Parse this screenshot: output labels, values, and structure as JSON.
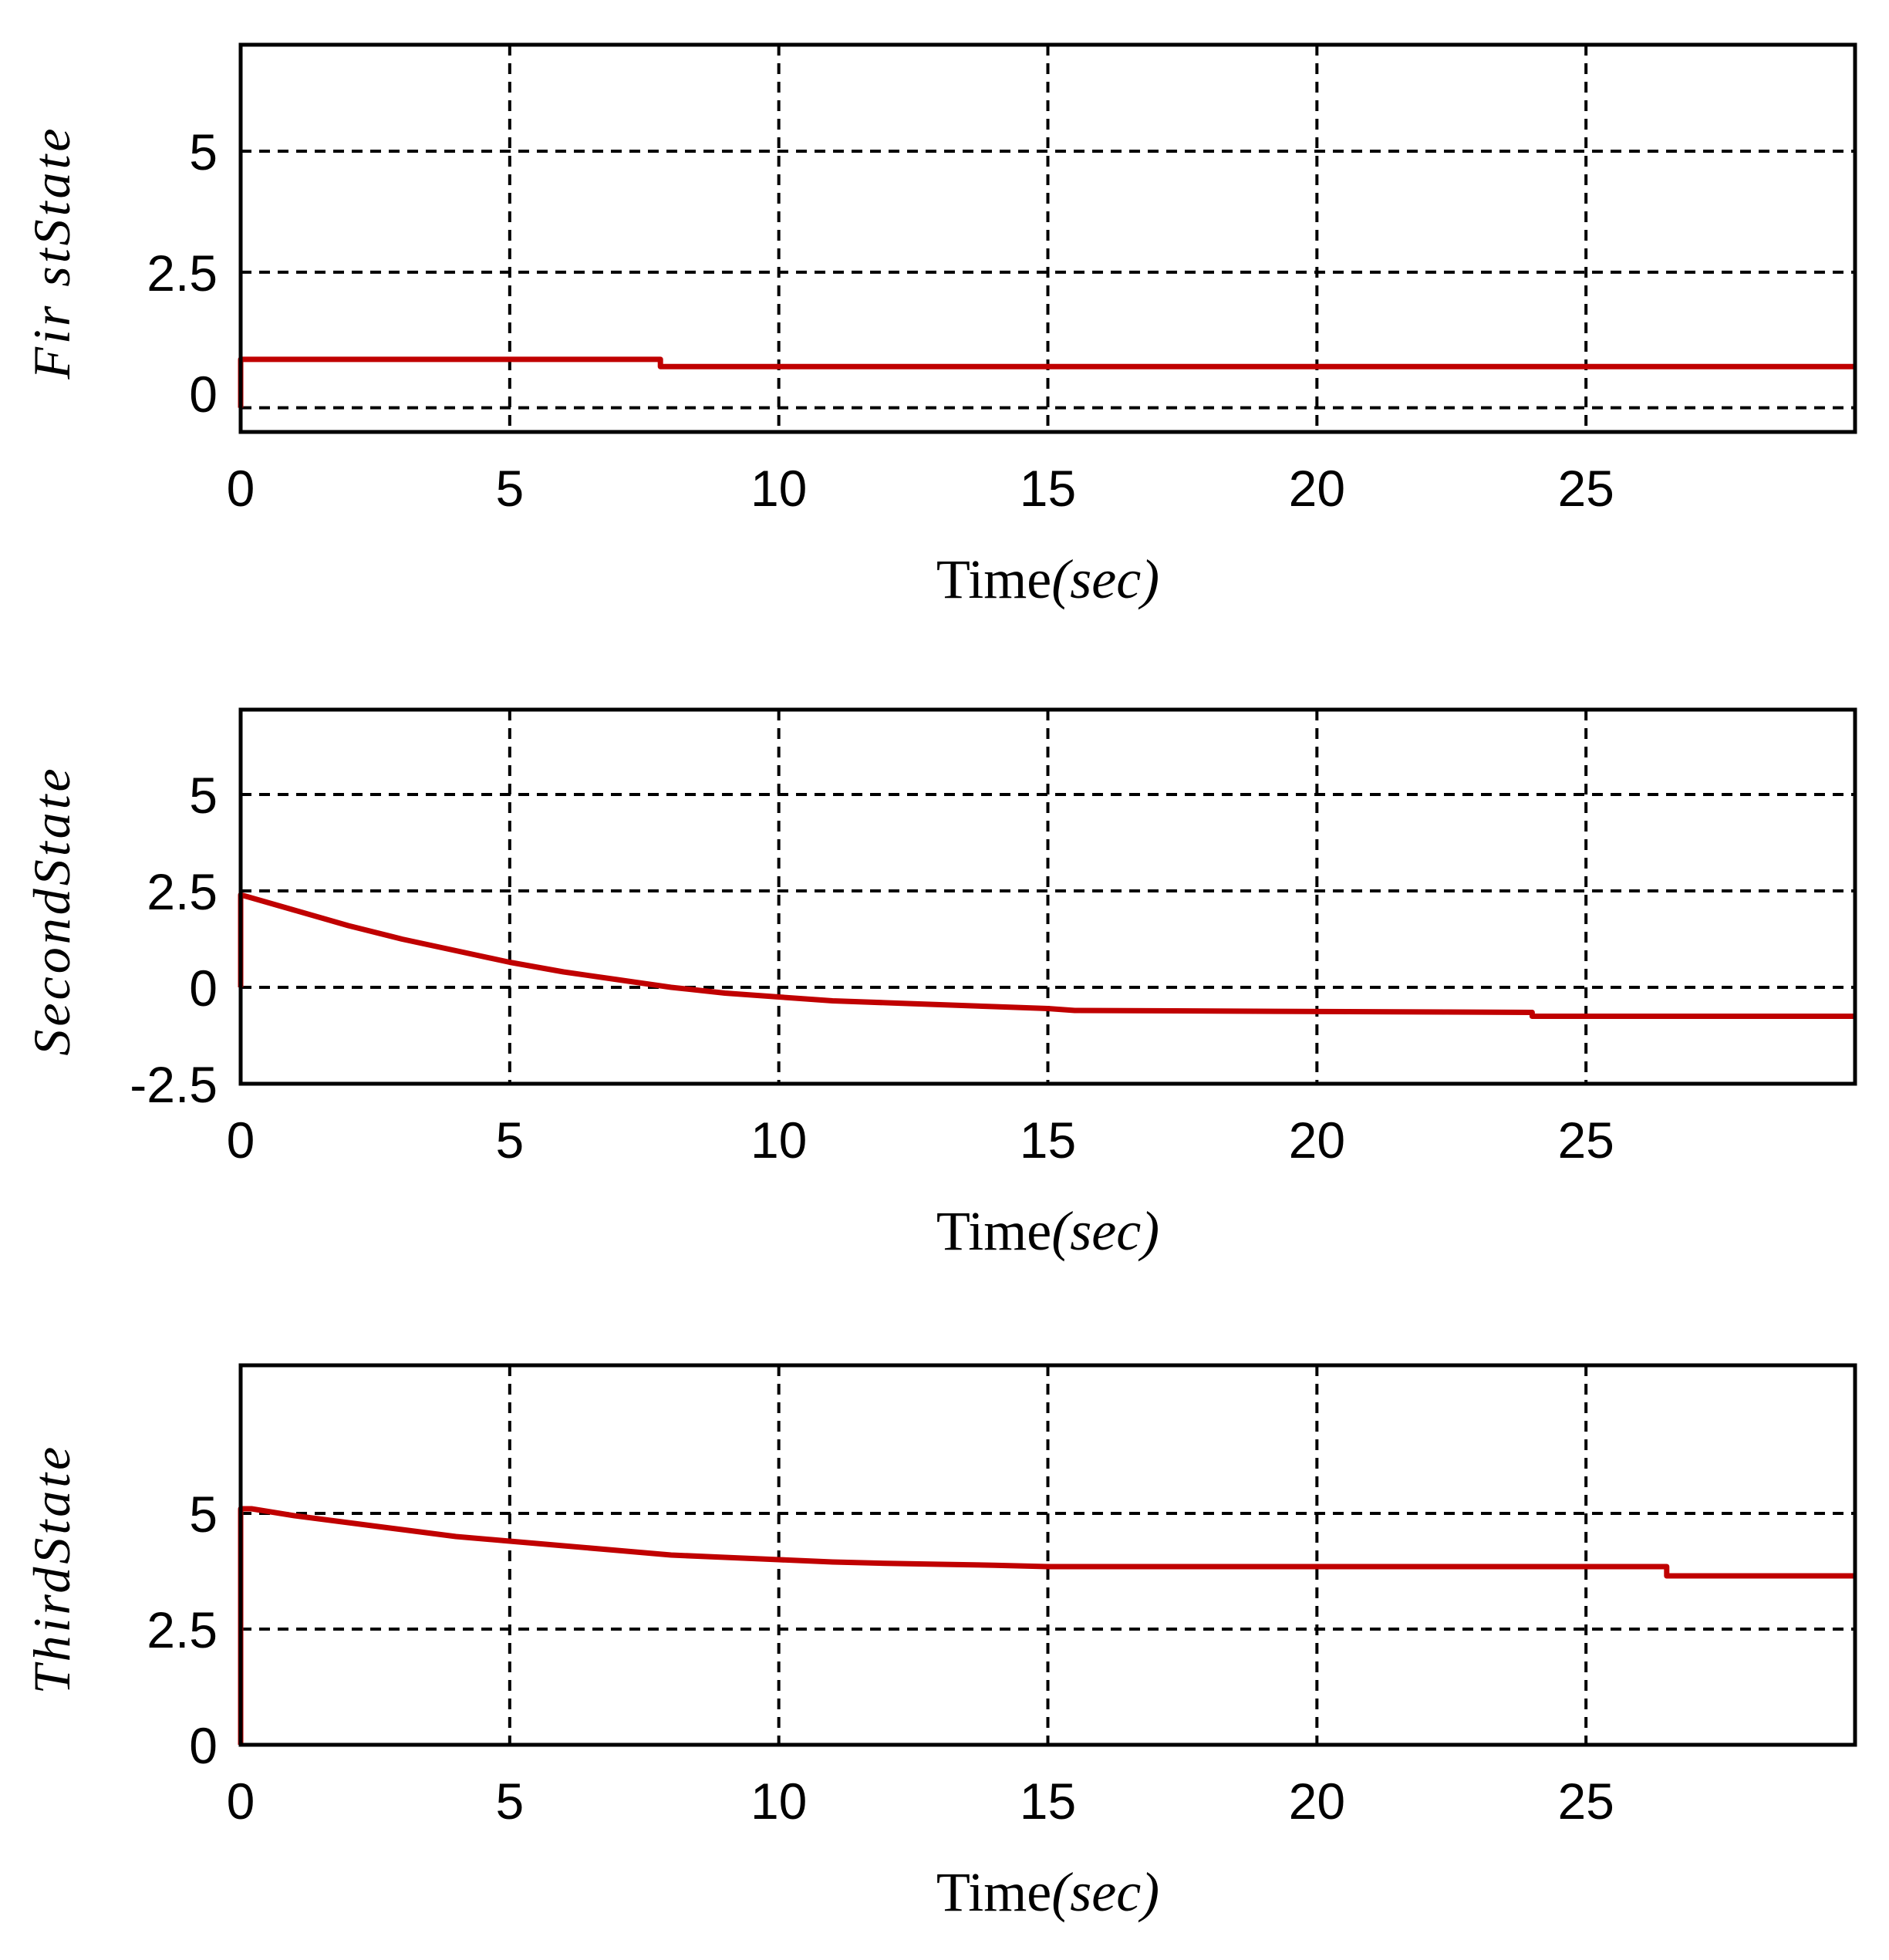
{
  "colors": {
    "background": "#ffffff",
    "axes": "#000000",
    "grid": "#000000",
    "series": "#c00000"
  },
  "chart_data": [
    {
      "type": "line",
      "title": "",
      "xlabel_main": "Time",
      "xlabel_unit": "(sec)",
      "ylabel": "Fir stState",
      "xlim": [
        0,
        30
      ],
      "ylim": [
        -0.8,
        7.2
      ],
      "xticks": [
        0,
        5,
        10,
        15,
        20,
        25
      ],
      "xtick_labels": [
        "0",
        "5",
        "10",
        "15",
        "20",
        "25"
      ],
      "yticks": [
        0,
        2.5,
        5
      ],
      "ytick_labels": [
        "0",
        "2.5",
        "5"
      ],
      "ygrid": [
        -0.3,
        2.5,
        5
      ],
      "grid": true,
      "series": [
        {
          "name": "First state",
          "x": [
            0,
            0,
            7.8,
            7.8,
            30
          ],
          "y": [
            -0.3,
            0.7,
            0.7,
            0.55,
            0.55
          ]
        }
      ]
    },
    {
      "type": "line",
      "title": "",
      "xlabel_main": "Time",
      "xlabel_unit": "(sec)",
      "ylabel": "SecondState",
      "xlim": [
        0,
        30
      ],
      "ylim": [
        -2.5,
        7.2
      ],
      "xticks": [
        0,
        5,
        10,
        15,
        20,
        25
      ],
      "xtick_labels": [
        "0",
        "5",
        "10",
        "15",
        "20",
        "25"
      ],
      "yticks": [
        -2.5,
        0,
        2.5,
        5
      ],
      "ytick_labels": [
        "-2.5",
        "0",
        "2.5",
        "5"
      ],
      "ygrid": [
        -2.5,
        0,
        2.5,
        5
      ],
      "grid": true,
      "series": [
        {
          "name": "Second state",
          "x": [
            0,
            0,
            1,
            2,
            3,
            4,
            5,
            6,
            7,
            8,
            9,
            10,
            11,
            12,
            13,
            14,
            15,
            15.5,
            24,
            24,
            30
          ],
          "y": [
            0,
            2.4,
            2.0,
            1.6,
            1.25,
            0.95,
            0.65,
            0.4,
            0.2,
            0.0,
            -0.15,
            -0.25,
            -0.35,
            -0.4,
            -0.45,
            -0.5,
            -0.55,
            -0.6,
            -0.65,
            -0.75,
            -0.75
          ]
        }
      ]
    },
    {
      "type": "line",
      "title": "",
      "xlabel_main": "Time",
      "xlabel_unit": "(sec)",
      "ylabel": "ThirdState",
      "xlim": [
        0,
        30
      ],
      "ylim": [
        0,
        8.2
      ],
      "xticks": [
        0,
        5,
        10,
        15,
        20,
        25
      ],
      "xtick_labels": [
        "0",
        "5",
        "10",
        "15",
        "20",
        "25"
      ],
      "yticks": [
        0,
        2.5,
        5
      ],
      "ytick_labels": [
        "0",
        "2.5",
        "5"
      ],
      "ygrid": [
        0,
        2.5,
        5
      ],
      "grid": true,
      "series": [
        {
          "name": "Third state",
          "x": [
            0,
            0,
            0.2,
            1,
            2,
            3,
            4,
            5,
            6,
            7,
            8,
            9,
            10,
            11,
            12,
            13,
            14,
            15,
            20,
            25,
            26.5,
            26.5,
            30
          ],
          "y": [
            0,
            5.1,
            5.1,
            4.95,
            4.8,
            4.65,
            4.5,
            4.4,
            4.3,
            4.2,
            4.1,
            4.05,
            4.0,
            3.95,
            3.92,
            3.9,
            3.88,
            3.85,
            3.85,
            3.85,
            3.85,
            3.65,
            3.65
          ]
        }
      ]
    }
  ]
}
